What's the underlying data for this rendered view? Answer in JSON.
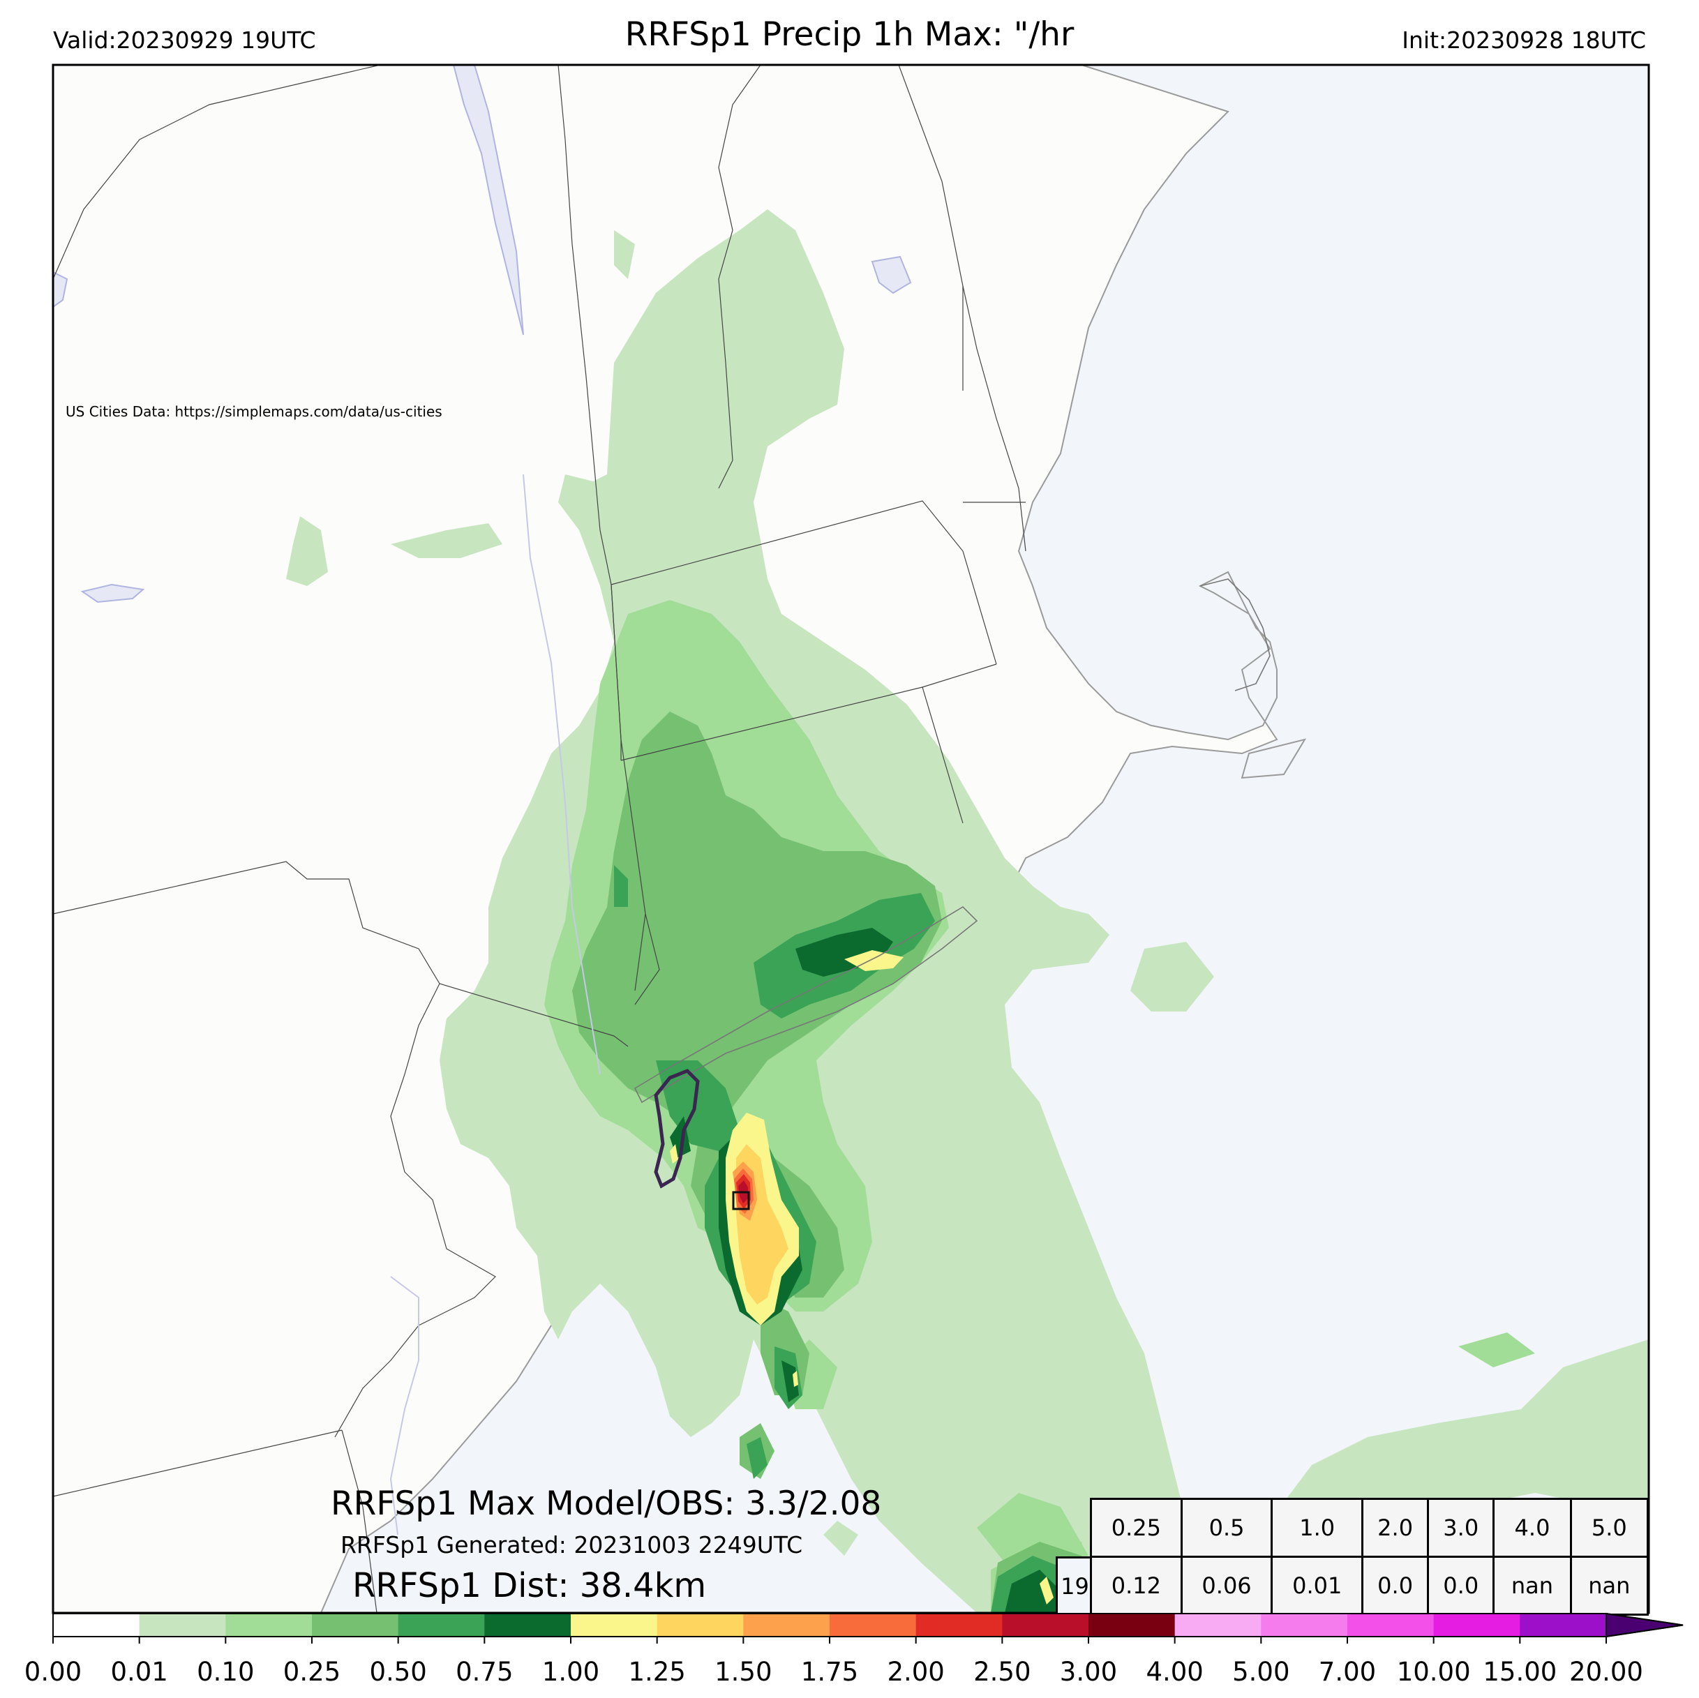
{
  "header": {
    "title": "RRFSp1 Precip 1h Max: \"/hr",
    "valid": "Valid:20230929 19UTC",
    "init": "Init:20230928 18UTC"
  },
  "map": {
    "credit": "US Cities Data: https://simplemaps.com/data/us-cities",
    "land_color": "#fcfcfa",
    "water_color": "#f2f5fa"
  },
  "summary": {
    "max_line": "RRFSp1 Max Model/OBS: 3.3/2.08",
    "generated": "RRFSp1 Generated: 20231003 2249UTC",
    "distance": "RRFSp1 Dist: 38.4km"
  },
  "stats_table": {
    "thresholds": [
      "0.25",
      "0.5",
      "1.0",
      "2.0",
      "3.0",
      "4.0",
      "5.0"
    ],
    "lead": "19",
    "values": [
      "0.12",
      "0.06",
      "0.01",
      "0.0",
      "0.0",
      "nan",
      "nan"
    ]
  },
  "colorbar": {
    "ticks": [
      "0.00",
      "0.01",
      "0.10",
      "0.25",
      "0.50",
      "0.75",
      "1.00",
      "1.25",
      "1.50",
      "1.75",
      "2.00",
      "2.50",
      "3.00",
      "4.00",
      "5.00",
      "7.00",
      "10.00",
      "15.00",
      "20.00"
    ],
    "colors": [
      "#ffffff",
      "#c7e6c0",
      "#a1dd97",
      "#76c072",
      "#3ba356",
      "#0b6b2e",
      "#fbf68c",
      "#fdd55f",
      "#fda14d",
      "#f86b3a",
      "#e12c25",
      "#b90f2a",
      "#780010",
      "#f8aaf2",
      "#f47ced",
      "#f250e9",
      "#e51de3",
      "#9b10c8"
    ],
    "extend_color": "#4a0070"
  }
}
